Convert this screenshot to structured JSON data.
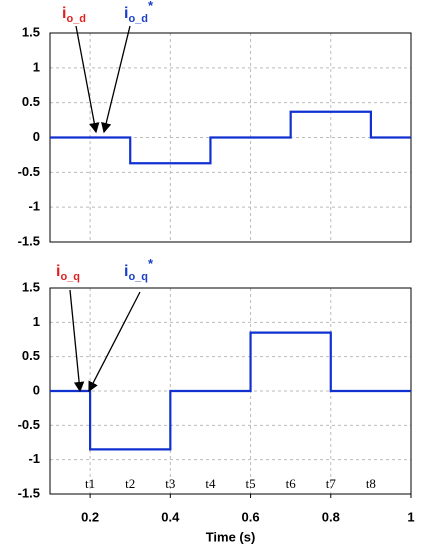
{
  "chart_data": [
    {
      "type": "line",
      "x": [
        0.1,
        0.3,
        0.3,
        0.5,
        0.5,
        0.7,
        0.7,
        0.9,
        0.9,
        1.0
      ],
      "series": [
        {
          "color": "#1030d0",
          "values": [
            0,
            0,
            -0.37,
            -0.37,
            0,
            0,
            0.37,
            0.37,
            0,
            0
          ]
        }
      ],
      "xlim": [
        0.1,
        1.0
      ],
      "ylim": [
        -1.5,
        1.5
      ],
      "yticks": [
        1.5,
        1,
        0.5,
        0,
        -0.5,
        -1,
        -1.5
      ],
      "xgrid": [
        0.2,
        0.4,
        0.6,
        0.8
      ],
      "grid": true,
      "annotations": [
        {
          "base": "i",
          "sub": "o_d",
          "color": "#e02020"
        },
        {
          "base": "i",
          "sub": "o_d",
          "sup": "*",
          "color": "#1a3ec8"
        }
      ]
    },
    {
      "type": "line",
      "x": [
        0.1,
        0.2,
        0.2,
        0.4,
        0.4,
        0.6,
        0.6,
        0.8,
        0.8,
        1.0
      ],
      "series": [
        {
          "color": "#1030d0",
          "values": [
            0,
            0,
            -0.85,
            -0.85,
            0,
            0,
            0.85,
            0.85,
            0,
            0
          ]
        }
      ],
      "xlim": [
        0.1,
        1.0
      ],
      "ylim": [
        -1.5,
        1.5
      ],
      "yticks": [
        1.5,
        1,
        0.5,
        0,
        -0.5,
        -1,
        -1.5
      ],
      "xticks": [
        0.2,
        0.4,
        0.6,
        0.8,
        1
      ],
      "xgrid": [
        0.2,
        0.4,
        0.6,
        0.8
      ],
      "grid": true,
      "xlabel": "Time (s)",
      "annotations": [
        {
          "base": "i",
          "sub": "o_q",
          "color": "#e02020"
        },
        {
          "base": "i",
          "sub": "o_q",
          "sup": "*",
          "color": "#1a3ec8"
        }
      ],
      "time_markers": [
        {
          "label": "t1",
          "x": 0.2
        },
        {
          "label": "t2",
          "x": 0.3
        },
        {
          "label": "t3",
          "x": 0.4
        },
        {
          "label": "t4",
          "x": 0.5
        },
        {
          "label": "t5",
          "x": 0.6
        },
        {
          "label": "t6",
          "x": 0.7
        },
        {
          "label": "t7",
          "x": 0.8
        },
        {
          "label": "t8",
          "x": 0.9
        }
      ]
    }
  ]
}
